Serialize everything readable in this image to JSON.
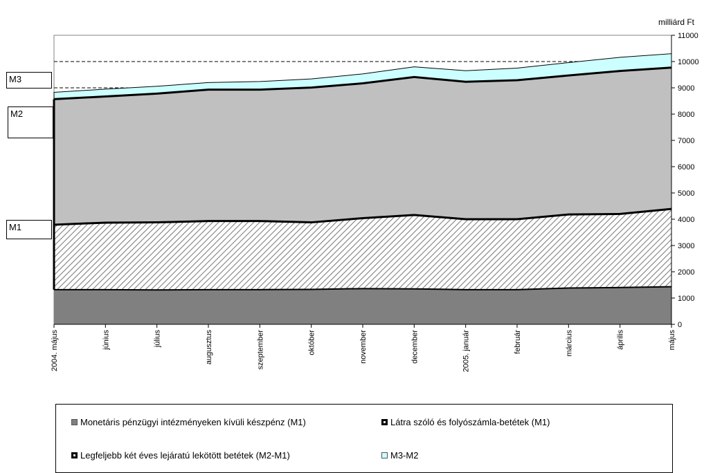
{
  "unit_label": "milliárd Ft",
  "side_labels": {
    "m3": "M3",
    "m2": "M2",
    "m1": "M1"
  },
  "legend": [
    "Monetáris pénzügyi intézményeken kívüli készpénz (M1)",
    "Látra szóló és folyószámla-betétek (M1)",
    "Legfeljebb két éves lejáratú lekötött betétek (M2-M1)",
    "M3-M2"
  ],
  "colors": {
    "cash": "#808080",
    "sight_fill": "#ffffff",
    "sight_hatch": "#808080",
    "time": "#c0c0c0",
    "m3m2": "#ccffff",
    "line": "#000000"
  },
  "chart_data": {
    "type": "area",
    "stacked": true,
    "categories": [
      "2004. május",
      "június",
      "július",
      "augusztus",
      "szeptember",
      "október",
      "november",
      "december",
      "2005. január",
      "február",
      "március",
      "április",
      "május"
    ],
    "series": [
      {
        "name": "Monetáris pénzügyi intézményeken kívüli készpénz (M1)",
        "values": [
          1320,
          1320,
          1310,
          1320,
          1320,
          1330,
          1360,
          1350,
          1320,
          1320,
          1380,
          1400,
          1430
        ]
      },
      {
        "name": "Látra szóló és folyószámla-betétek (M1)",
        "values": [
          2470,
          2550,
          2570,
          2610,
          2610,
          2550,
          2680,
          2810,
          2680,
          2680,
          2800,
          2800,
          2960
        ]
      },
      {
        "name": "Legfeljebb két éves lejáratú lekötött betétek (M2-M1)",
        "values": [
          4780,
          4800,
          4900,
          5000,
          5000,
          5130,
          5130,
          5250,
          5230,
          5290,
          5290,
          5440,
          5380
        ]
      },
      {
        "name": "M3-M2",
        "values": [
          260,
          280,
          280,
          270,
          310,
          330,
          360,
          390,
          420,
          460,
          490,
          520,
          530
        ]
      }
    ],
    "totals": {
      "M1": [
        3790,
        3870,
        3880,
        3930,
        3930,
        3880,
        4040,
        4160,
        4000,
        4000,
        4180,
        4200,
        4390
      ],
      "M2": [
        8570,
        8670,
        8780,
        8930,
        8930,
        9010,
        9170,
        9410,
        9230,
        9290,
        9470,
        9640,
        9770
      ],
      "M3": [
        8830,
        8950,
        9060,
        9200,
        9240,
        9340,
        9530,
        9800,
        9650,
        9750,
        9960,
        10160,
        10300
      ]
    },
    "ylim": [
      0,
      11000
    ],
    "yticks": [
      0,
      1000,
      2000,
      3000,
      4000,
      5000,
      6000,
      7000,
      8000,
      9000,
      10000,
      11000
    ],
    "y_axis_side": "right",
    "reference_lines": [
      9000,
      10000
    ],
    "ylabel": "milliárd Ft",
    "legend_position": "bottom"
  }
}
